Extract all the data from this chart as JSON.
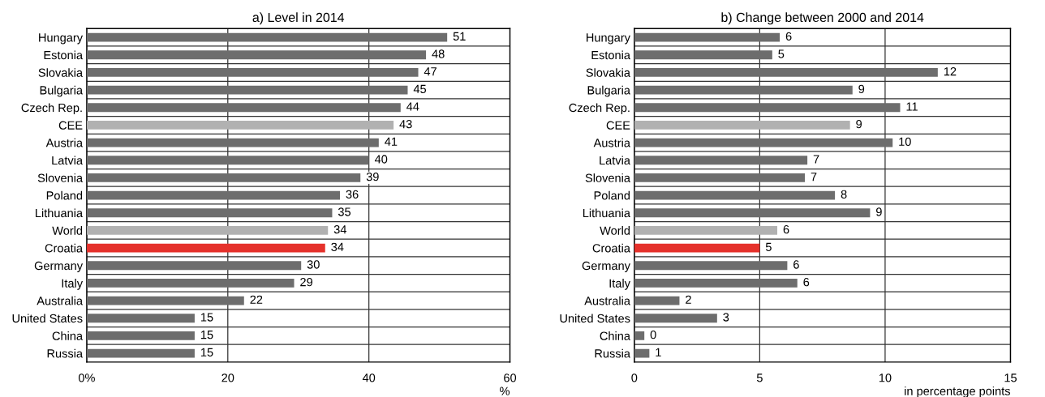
{
  "chart_data": [
    {
      "type": "bar",
      "orientation": "horizontal",
      "title": "a) Level in 2014",
      "xlabel": "%",
      "categories": [
        "Hungary",
        "Estonia",
        "Slovakia",
        "Bulgaria",
        "Czech Rep.",
        "CEE",
        "Austria",
        "Latvia",
        "Slovenia",
        "Poland",
        "Lithuania",
        "World",
        "Croatia",
        "Germany",
        "Italy",
        "Australia",
        "United States",
        "China",
        "Russia"
      ],
      "values": [
        51.1,
        48.1,
        47.0,
        45.5,
        44.5,
        43.5,
        41.4,
        40.0,
        38.8,
        35.9,
        34.8,
        34.2,
        33.8,
        30.4,
        29.4,
        22.3,
        15.3,
        15.3,
        15.3
      ],
      "value_labels": [
        "51",
        "48",
        "47",
        "45",
        "44",
        "43",
        "41",
        "40",
        "39",
        "36",
        "35",
        "34",
        "34",
        "30",
        "29",
        "22",
        "15",
        "15",
        "15"
      ],
      "colors": [
        "#6d6d6d",
        "#6d6d6d",
        "#6d6d6d",
        "#6d6d6d",
        "#6d6d6d",
        "#b1b1b1",
        "#6d6d6d",
        "#6d6d6d",
        "#6d6d6d",
        "#6d6d6d",
        "#6d6d6d",
        "#b1b1b1",
        "#e5312b",
        "#6d6d6d",
        "#6d6d6d",
        "#6d6d6d",
        "#6d6d6d",
        "#6d6d6d",
        "#6d6d6d"
      ],
      "xlim": [
        0,
        60
      ],
      "xticks": [
        {
          "value": 0,
          "label": "0%"
        },
        20,
        40,
        60
      ],
      "grid": true
    },
    {
      "type": "bar",
      "orientation": "horizontal",
      "title": "b) Change between 2000 and 2014",
      "xlabel": "in percentage points",
      "categories": [
        "Hungary",
        "Estonia",
        "Slovakia",
        "Bulgaria",
        "Czech Rep.",
        "CEE",
        "Austria",
        "Latvia",
        "Slovenia",
        "Poland",
        "Lithuania",
        "World",
        "Croatia",
        "Germany",
        "Italy",
        "Australia",
        "United States",
        "China",
        "Russia"
      ],
      "values": [
        5.8,
        5.5,
        12.1,
        8.7,
        10.6,
        8.6,
        10.3,
        6.9,
        6.8,
        8.0,
        9.4,
        5.7,
        5.0,
        6.1,
        6.5,
        1.8,
        3.3,
        0.4,
        0.6
      ],
      "value_labels": [
        "6",
        "5",
        "12",
        "9",
        "11",
        "9",
        "10",
        "7",
        "7",
        "8",
        "9",
        "6",
        "5",
        "6",
        "6",
        "2",
        "3",
        "0",
        "1"
      ],
      "colors": [
        "#6d6d6d",
        "#6d6d6d",
        "#6d6d6d",
        "#6d6d6d",
        "#6d6d6d",
        "#b1b1b1",
        "#6d6d6d",
        "#6d6d6d",
        "#6d6d6d",
        "#6d6d6d",
        "#6d6d6d",
        "#b1b1b1",
        "#e5312b",
        "#6d6d6d",
        "#6d6d6d",
        "#6d6d6d",
        "#6d6d6d",
        "#6d6d6d",
        "#6d6d6d"
      ],
      "xlim": [
        0,
        15
      ],
      "xticks": [
        0,
        5,
        10,
        15
      ],
      "grid": true
    }
  ]
}
